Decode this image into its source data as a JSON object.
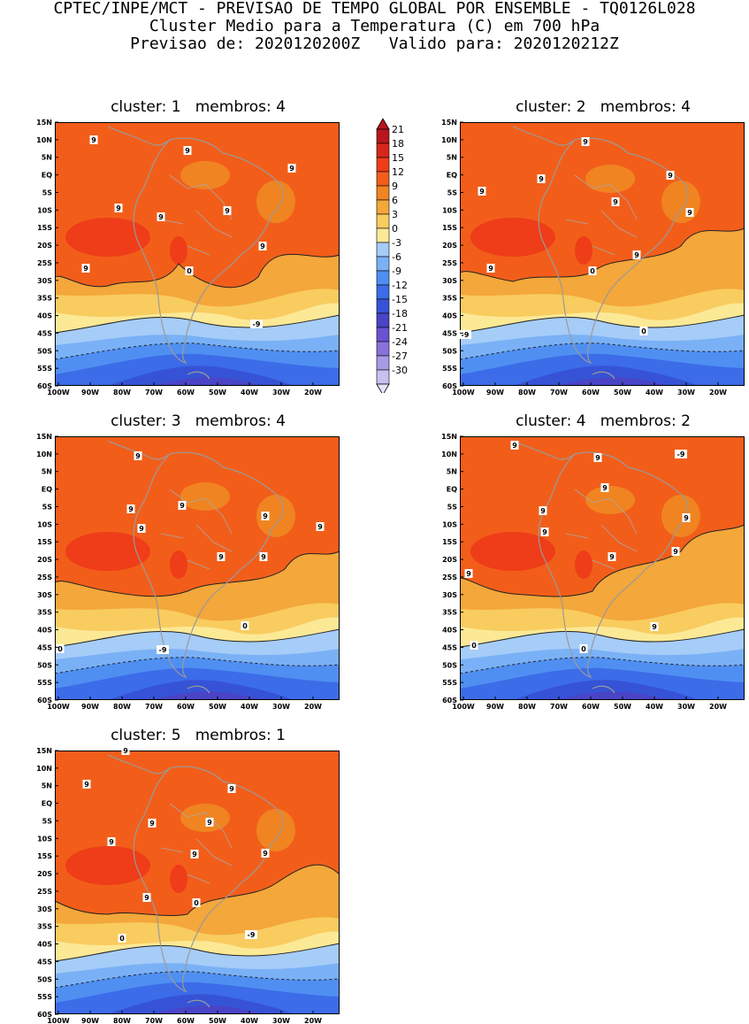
{
  "header": {
    "line1": "CPTEC/INPE/MCT - PREVISAO DE TEMPO GLOBAL POR ENSEMBLE - TQ0126L028",
    "line2": "Cluster Medio para a Temperatura (C) em 700 hPa",
    "line3": "Previsao de: 2020120200Z   Valido para: 2020120212Z"
  },
  "lat_ticks": [
    "15N",
    "10N",
    "5N",
    "EQ",
    "5S",
    "10S",
    "15S",
    "20S",
    "25S",
    "30S",
    "35S",
    "40S",
    "45S",
    "50S",
    "55S",
    "60S"
  ],
  "lon_ticks": [
    "100W",
    "90W",
    "80W",
    "70W",
    "60W",
    "50W",
    "40W",
    "30W",
    "20W"
  ],
  "colorbar": {
    "levels": [
      "21",
      "18",
      "15",
      "12",
      "9",
      "6",
      "3",
      "0",
      "-3",
      "-6",
      "-9",
      "-12",
      "-15",
      "-18",
      "-21",
      "-24",
      "-27",
      "-30"
    ],
    "colors": [
      "#b8161c",
      "#d8261a",
      "#ee3d18",
      "#f25e1a",
      "#f08421",
      "#f4a73a",
      "#f9cc60",
      "#fce996",
      "#a6ccf8",
      "#7ab1f6",
      "#4f8ff2",
      "#3c6ce8",
      "#3653d6",
      "#4a44c6",
      "#6a52d2",
      "#8a72dc",
      "#a89ae6",
      "#c8c0f0"
    ]
  },
  "panels": [
    {
      "title": "cluster: 1   membros: 4",
      "contour_labels": [
        "9",
        "9",
        "9",
        "9",
        "9",
        "9",
        "9",
        "9",
        "0",
        "-9"
      ]
    },
    {
      "title": "cluster: 2   membros: 4",
      "contour_labels": [
        "9",
        "9",
        "9",
        "9",
        "9",
        "9",
        "9",
        "9",
        "0",
        "0",
        "-9"
      ]
    },
    {
      "title": "cluster: 3   membros: 4",
      "contour_labels": [
        "9",
        "9",
        "9",
        "9",
        "9",
        "9",
        "9",
        "9",
        "0",
        "0",
        "-9"
      ]
    },
    {
      "title": "cluster: 4   membros: 2",
      "contour_labels": [
        "9",
        "9",
        "9",
        "9",
        "9",
        "9",
        "9",
        "9",
        "9",
        "9",
        "0",
        "0",
        "-9"
      ]
    },
    {
      "title": "cluster: 5   membros: 1",
      "contour_labels": [
        "9",
        "9",
        "9",
        "9",
        "9",
        "9",
        "9",
        "9",
        "9",
        "0",
        "0",
        "-9"
      ]
    }
  ]
}
